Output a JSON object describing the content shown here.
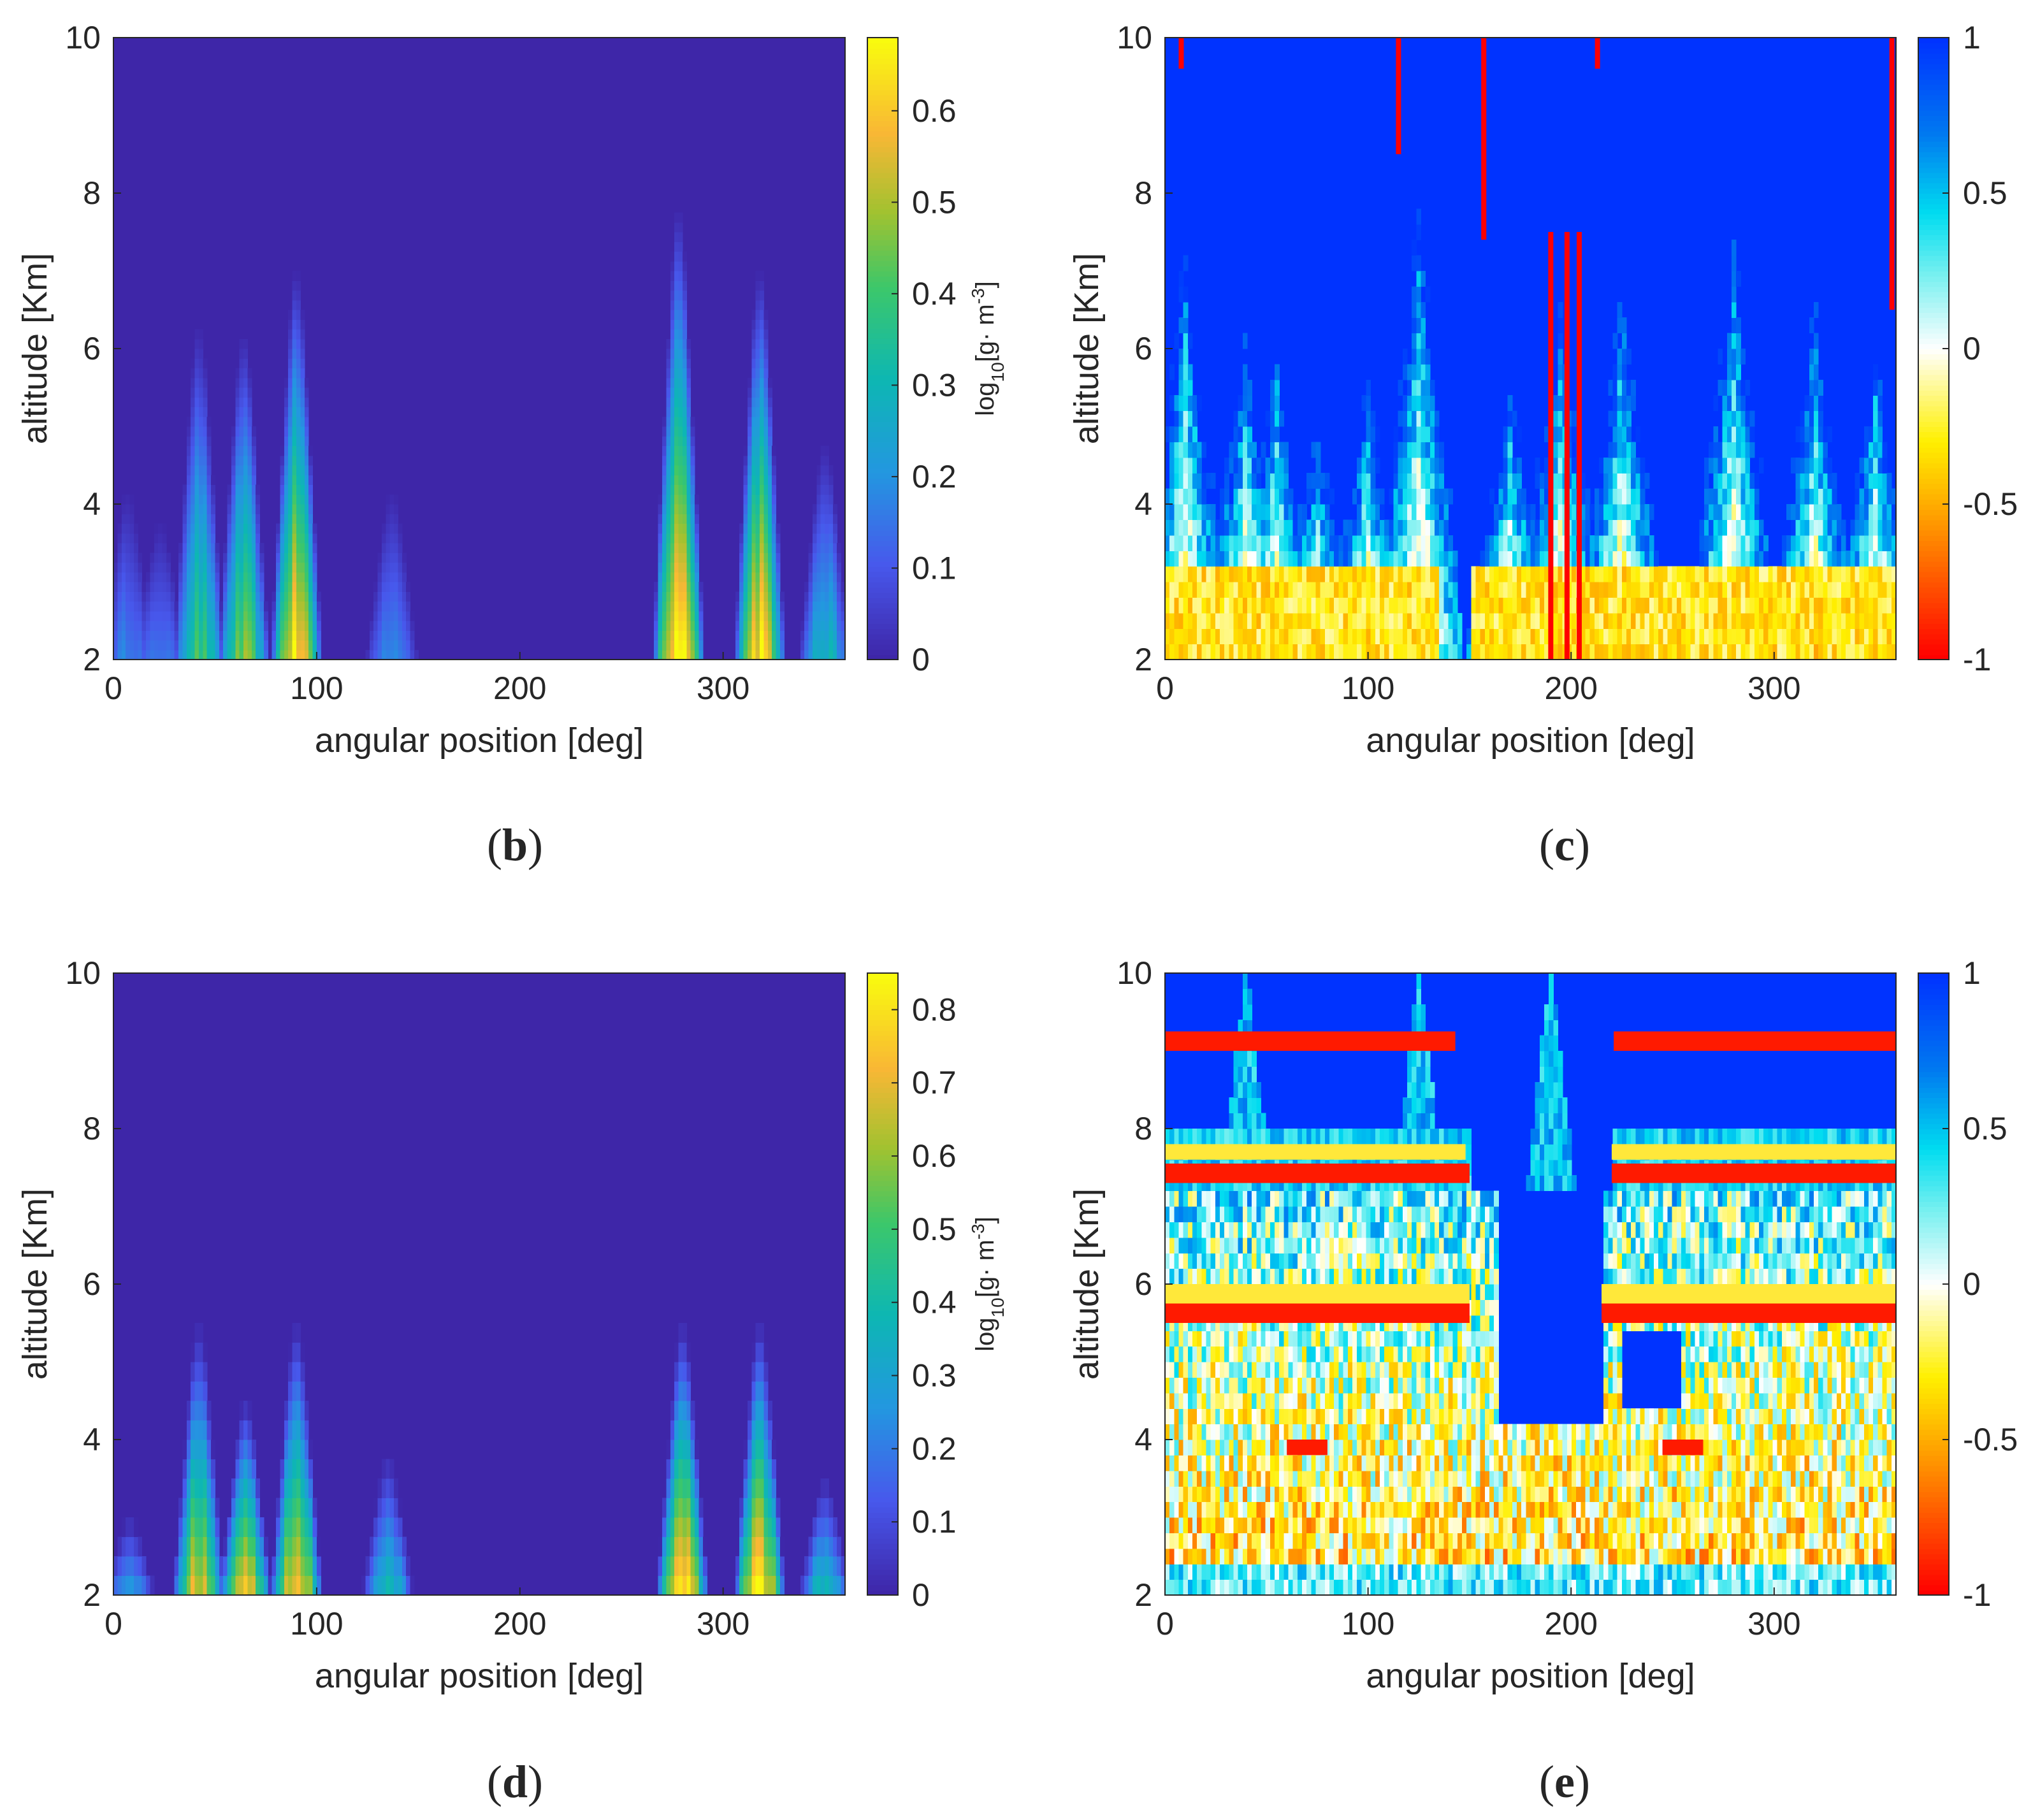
{
  "chart_data": [
    {
      "panel": "b",
      "type": "heatmap",
      "colormap": "parula",
      "xlabel": "angular position [deg]",
      "ylabel": "altitude [Km]",
      "xlim": [
        0,
        360
      ],
      "ylim": [
        2,
        10
      ],
      "xticks": [
        "0",
        "100",
        "200",
        "300"
      ],
      "yticks": [
        "2",
        "4",
        "6",
        "8",
        "10"
      ],
      "colorbar": {
        "label": "log10[g· m-3]",
        "label_main": "log",
        "label_sub": "10",
        "label_mid": "[g· m",
        "label_sup": "-3",
        "label_end": "]",
        "min": 0,
        "max": 0.68,
        "ticks": [
          "0",
          "0.1",
          "0.2",
          "0.3",
          "0.4",
          "0.5",
          "0.6"
        ]
      },
      "features": [
        {
          "center_deg": 7,
          "top_km": 4.2,
          "peak": 0.18
        },
        {
          "center_deg": 23,
          "top_km": 3.8,
          "peak": 0.16
        },
        {
          "center_deg": 42,
          "top_km": 6.3,
          "peak": 0.4
        },
        {
          "center_deg": 64,
          "top_km": 6.2,
          "peak": 0.45
        },
        {
          "center_deg": 90,
          "top_km": 7.0,
          "peak": 0.62
        },
        {
          "center_deg": 137,
          "top_km": 4.2,
          "peak": 0.2
        },
        {
          "center_deg": 278,
          "top_km": 7.8,
          "peak": 0.66
        },
        {
          "center_deg": 318,
          "top_km": 7.0,
          "peak": 0.64
        },
        {
          "center_deg": 350,
          "top_km": 4.8,
          "peak": 0.3
        }
      ]
    },
    {
      "panel": "c",
      "type": "heatmap",
      "colormap": "jet-red-yellow-white-cyan-blue",
      "xlabel": "angular position [deg]",
      "ylabel": "altitude [Km]",
      "xlim": [
        0,
        360
      ],
      "ylim": [
        2,
        10
      ],
      "xticks": [
        "0",
        "100",
        "200",
        "300"
      ],
      "yticks": [
        "2",
        "4",
        "6",
        "8",
        "10"
      ],
      "colorbar": {
        "min": -1,
        "max": 1,
        "ticks": [
          "-1",
          "-0.5",
          "0",
          "0.5",
          "1"
        ]
      },
      "red_streaks_deg": [
        8,
        115,
        157,
        190,
        198,
        204,
        213,
        358
      ],
      "features": [
        {
          "center_deg": 10,
          "top_km": 7.2
        },
        {
          "center_deg": 40,
          "top_km": 6.2
        },
        {
          "center_deg": 55,
          "top_km": 6.0
        },
        {
          "center_deg": 75,
          "top_km": 5.0
        },
        {
          "center_deg": 100,
          "top_km": 5.5
        },
        {
          "center_deg": 125,
          "top_km": 7.8
        },
        {
          "center_deg": 170,
          "top_km": 5.5
        },
        {
          "center_deg": 195,
          "top_km": 6.5
        },
        {
          "center_deg": 225,
          "top_km": 7.0
        },
        {
          "center_deg": 280,
          "top_km": 7.4
        },
        {
          "center_deg": 320,
          "top_km": 6.5
        },
        {
          "center_deg": 350,
          "top_km": 6.0
        }
      ]
    },
    {
      "panel": "d",
      "type": "heatmap",
      "colormap": "parula",
      "xlabel": "angular position [deg]",
      "ylabel": "altitude [Km]",
      "xlim": [
        0,
        360
      ],
      "ylim": [
        2,
        10
      ],
      "xticks": [
        "0",
        "100",
        "200",
        "300"
      ],
      "yticks": [
        "2",
        "4",
        "6",
        "8",
        "10"
      ],
      "colorbar": {
        "label": "log10[g· m-3]",
        "label_main": "log",
        "label_sub": "10",
        "label_mid": "[g· m",
        "label_sup": "-3",
        "label_end": "]",
        "min": 0,
        "max": 0.85,
        "ticks": [
          "0",
          "0.1",
          "0.2",
          "0.3",
          "0.4",
          "0.5",
          "0.6",
          "0.7",
          "0.8"
        ]
      },
      "features": [
        {
          "center_deg": 8,
          "top_km": 3.0,
          "peak": 0.3
        },
        {
          "center_deg": 42,
          "top_km": 5.5,
          "peak": 0.7
        },
        {
          "center_deg": 65,
          "top_km": 4.5,
          "peak": 0.75
        },
        {
          "center_deg": 90,
          "top_km": 5.5,
          "peak": 0.8
        },
        {
          "center_deg": 135,
          "top_km": 3.8,
          "peak": 0.4
        },
        {
          "center_deg": 280,
          "top_km": 5.5,
          "peak": 0.84
        },
        {
          "center_deg": 318,
          "top_km": 5.5,
          "peak": 0.82
        },
        {
          "center_deg": 350,
          "top_km": 3.5,
          "peak": 0.4
        }
      ]
    },
    {
      "panel": "e",
      "type": "heatmap",
      "colormap": "jet-red-yellow-white-cyan-blue",
      "xlabel": "angular position [deg]",
      "ylabel": "altitude [Km]",
      "xlim": [
        0,
        360
      ],
      "ylim": [
        2,
        10
      ],
      "xticks": [
        "0",
        "100",
        "200",
        "300"
      ],
      "yticks": [
        "2",
        "4",
        "6",
        "8",
        "10"
      ],
      "colorbar": {
        "min": -1,
        "max": 1,
        "ticks": [
          "-1",
          "-0.5",
          "0",
          "0.5",
          "1"
        ]
      },
      "red_bands": [
        {
          "y0": 9.0,
          "y1": 9.25,
          "x_ranges": [
            [
              0,
              143
            ],
            [
              221,
              360
            ]
          ]
        },
        {
          "y0": 7.3,
          "y1": 7.55,
          "x_ranges": [
            [
              0,
              150
            ],
            [
              220,
              360
            ]
          ]
        },
        {
          "y0": 5.5,
          "y1": 5.75,
          "x_ranges": [
            [
              0,
              150
            ],
            [
              215,
              360
            ]
          ]
        },
        {
          "y0": 3.8,
          "y1": 4.0,
          "x_ranges": [
            [
              60,
              80
            ],
            [
              245,
              265
            ]
          ]
        }
      ],
      "yellow_bands": [
        {
          "y0": 7.6,
          "y1": 7.8,
          "x_ranges": [
            [
              0,
              148
            ],
            [
              220,
              360
            ]
          ]
        },
        {
          "y0": 5.75,
          "y1": 6.0,
          "x_ranges": [
            [
              0,
              150
            ],
            [
              215,
              360
            ]
          ]
        }
      ]
    }
  ],
  "panel_labels": {
    "b": {
      "open": "(",
      "letter": "b",
      "close": ")"
    },
    "c": {
      "open": "(",
      "letter": "c",
      "close": ")"
    },
    "d": {
      "open": "(",
      "letter": "d",
      "close": ")"
    },
    "e": {
      "open": "(",
      "letter": "e",
      "close": ")"
    }
  }
}
